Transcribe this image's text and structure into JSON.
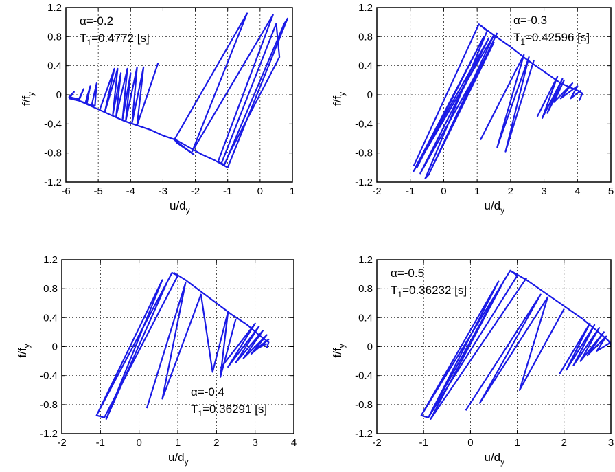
{
  "line_color": "#1a1ae6",
  "chart_data": [
    {
      "type": "line",
      "xlabel": "u/d",
      "xlabel_sub": "y",
      "ylabel": "f/f",
      "ylabel_sub": "y",
      "xlim": [
        -6,
        1
      ],
      "ylim": [
        -1.2,
        1.2
      ],
      "xticks": [
        "-6",
        "-5",
        "-4",
        "-3",
        "-2",
        "-1",
        "0",
        "1"
      ],
      "yticks": [
        "-1.2",
        "-0.8",
        "-0.4",
        "0",
        "0.4",
        "0.8",
        "1.2"
      ],
      "grid": true,
      "annotation": {
        "line1": "α=-0.2",
        "line2_base": "T",
        "line2_sub": "1",
        "line2_rest": "=0.4772 [s]",
        "placement": "top-left"
      },
      "series": [
        {
          "x": [
            -5.9,
            -5.6,
            -5.2,
            -4.9,
            -4.6,
            -4.2,
            -3.8,
            -3.4,
            -3.0,
            -2.6,
            -2.2,
            -1.8,
            -1.4,
            -1.0,
            -1.0
          ],
          "y": [
            -0.05,
            -0.08,
            -0.16,
            -0.22,
            -0.28,
            -0.36,
            -0.42,
            -0.48,
            -0.56,
            -0.62,
            -0.72,
            -0.82,
            -0.9,
            -1.0,
            -1.0
          ]
        },
        {
          "x": [
            -5.9,
            -5.75,
            -5.9,
            -5.6,
            -5.45,
            -5.6,
            -5.35,
            -5.25,
            -5.4,
            -5.1,
            -5.05,
            -5.2
          ],
          "y": [
            -0.05,
            0.04,
            -0.03,
            -0.06,
            0.08,
            -0.08,
            -0.12,
            0.12,
            -0.12,
            -0.15,
            0.16,
            -0.14
          ]
        },
        {
          "x": [
            -4.95,
            -4.5,
            -4.8,
            -4.4,
            -4.55,
            -4.3,
            -4.45,
            -4.1,
            -4.25,
            -4.0,
            -4.15,
            -3.8,
            -3.95,
            -3.6,
            -3.8,
            -3.15
          ],
          "y": [
            -0.2,
            0.36,
            -0.24,
            0.36,
            -0.27,
            0.3,
            -0.3,
            0.36,
            -0.34,
            0.3,
            -0.36,
            0.38,
            -0.38,
            0.38,
            -0.42,
            0.44
          ]
        },
        {
          "x": [
            -1.0,
            0.85,
            0.75,
            -1.1,
            -1.3,
            0.4,
            -2.1,
            -0.4,
            -2.65,
            -2.05,
            -2.6
          ],
          "y": [
            -1.0,
            1.05,
            0.98,
            -0.96,
            -0.92,
            1.1,
            -0.78,
            1.12,
            -0.62,
            -0.82,
            -0.65
          ]
        },
        {
          "x": [
            -1.2,
            0.5,
            0.6,
            -1.0
          ],
          "y": [
            -0.95,
            0.98,
            0.52,
            -0.85
          ]
        }
      ]
    },
    {
      "type": "line",
      "xlabel": "u/d",
      "xlabel_sub": "y",
      "ylabel": "f/f",
      "ylabel_sub": "y",
      "xlim": [
        -2,
        5
      ],
      "ylim": [
        -1.2,
        1.2
      ],
      "xticks": [
        "-2",
        "-1",
        "0",
        "1",
        "2",
        "3",
        "4",
        "5"
      ],
      "yticks": [
        "-1.2",
        "-0.8",
        "-0.4",
        "0",
        "0.4",
        "0.8",
        "1.2"
      ],
      "grid": true,
      "annotation": {
        "line1": "α=-0.3",
        "line2_base": "T",
        "line2_sub": "1",
        "line2_rest": "=0.42596 [s]",
        "placement": "top-right"
      },
      "series": [
        {
          "x": [
            1.05,
            1.5,
            2.0,
            2.5,
            3.0,
            3.5,
            4.0,
            4.15,
            4.05
          ],
          "y": [
            0.97,
            0.82,
            0.66,
            0.48,
            0.32,
            0.16,
            0.06,
            0.02,
            -0.08
          ]
        },
        {
          "x": [
            -0.9,
            1.05,
            1.3,
            -0.55,
            -0.45,
            1.5,
            -0.9,
            1.2,
            -0.8
          ],
          "y": [
            -0.98,
            0.97,
            0.88,
            -1.15,
            -1.1,
            0.82,
            -1.05,
            0.8,
            -1.0
          ]
        },
        {
          "x": [
            -0.85,
            1.35,
            -0.7,
            1.5,
            -0.35,
            1.6
          ],
          "y": [
            -1.0,
            0.78,
            -1.08,
            0.72,
            -1.0,
            0.85
          ]
        },
        {
          "x": [
            1.1,
            2.4,
            1.6,
            2.55,
            1.85,
            2.7
          ],
          "y": [
            -0.62,
            0.55,
            -0.72,
            0.52,
            -0.78,
            0.48
          ]
        },
        {
          "x": [
            2.8,
            3.4,
            2.95,
            3.55,
            3.1,
            3.6,
            3.3,
            3.85,
            3.5,
            4.0,
            3.8,
            4.1
          ],
          "y": [
            -0.3,
            0.25,
            -0.32,
            0.22,
            -0.25,
            0.2,
            -0.1,
            0.16,
            -0.05,
            0.12,
            -0.05,
            0.06
          ]
        }
      ]
    },
    {
      "type": "line",
      "xlabel": "u/d",
      "xlabel_sub": "y",
      "ylabel": "f/f",
      "ylabel_sub": "y",
      "xlim": [
        -2,
        4
      ],
      "ylim": [
        -1.2,
        1.2
      ],
      "xticks": [
        "-2",
        "-1",
        "0",
        "1",
        "2",
        "3",
        "4"
      ],
      "yticks": [
        "-1.2",
        "-0.8",
        "-0.4",
        "0",
        "0.4",
        "0.8",
        "1.2"
      ],
      "grid": true,
      "annotation": {
        "line1": "α=-0.4",
        "line2_base": "T",
        "line2_sub": "1",
        "line2_rest": "=0.36291 [s]",
        "placement": "bottom-right"
      },
      "series": [
        {
          "x": [
            0.9,
            1.2,
            1.6,
            2.0,
            2.4,
            2.8,
            3.1,
            3.35,
            3.3
          ],
          "y": [
            1.02,
            0.92,
            0.76,
            0.6,
            0.44,
            0.3,
            0.16,
            0.06,
            -0.02
          ]
        },
        {
          "x": [
            -1.1,
            0.85,
            1.0,
            -0.9,
            -1.1,
            0.6,
            -0.85,
            0.75
          ],
          "y": [
            -0.95,
            1.02,
            0.98,
            -0.98,
            -0.95,
            0.92,
            -1.0,
            0.92
          ]
        },
        {
          "x": [
            0.2,
            1.2,
            0.6,
            1.6,
            1.9,
            2.3,
            2.1,
            2.5
          ],
          "y": [
            -0.85,
            0.88,
            -0.72,
            0.72,
            -0.35,
            0.48,
            -0.42,
            0.38
          ]
        },
        {
          "x": [
            2.1,
            3.0,
            2.3,
            3.1,
            2.5,
            3.2,
            2.7,
            3.3,
            2.9,
            3.35,
            3.0,
            3.3
          ],
          "y": [
            -0.3,
            0.32,
            -0.28,
            0.28,
            -0.22,
            0.22,
            -0.16,
            0.16,
            -0.1,
            0.1,
            -0.04,
            0.04
          ]
        }
      ]
    },
    {
      "type": "line",
      "xlabel": "u/d",
      "xlabel_sub": "y",
      "ylabel": "f/f",
      "ylabel_sub": "y",
      "xlim": [
        -2,
        3
      ],
      "ylim": [
        -1.2,
        1.2
      ],
      "xticks": [
        "-2",
        "-1",
        "0",
        "1",
        "2",
        "3"
      ],
      "yticks": [
        "-1.2",
        "-0.8",
        "-0.4",
        "0",
        "0.4",
        "0.8",
        "1.2"
      ],
      "grid": true,
      "annotation": {
        "line1": "α=-0.5",
        "line2_base": "T",
        "line2_sub": "1",
        "line2_rest": "=0.36232 [s]",
        "placement": "top-left"
      },
      "series": [
        {
          "x": [
            0.85,
            1.2,
            1.6,
            2.0,
            2.4,
            2.7,
            2.95,
            3.0
          ],
          "y": [
            1.05,
            0.92,
            0.74,
            0.56,
            0.38,
            0.22,
            0.08,
            0.02
          ]
        },
        {
          "x": [
            -1.05,
            0.85,
            1.0,
            -0.9,
            -1.05,
            0.6,
            -0.9,
            0.75,
            -0.85,
            1.2
          ],
          "y": [
            -0.95,
            1.05,
            0.98,
            -0.98,
            -0.95,
            0.9,
            -0.98,
            0.95,
            -1.0,
            0.95
          ]
        },
        {
          "x": [
            -0.1,
            1.5,
            0.2,
            1.65,
            1.05,
            2.0
          ],
          "y": [
            -0.88,
            0.72,
            -0.78,
            0.68,
            -0.6,
            0.52
          ]
        },
        {
          "x": [
            1.9,
            2.55,
            2.05,
            2.65,
            2.2,
            2.75,
            2.35,
            2.85,
            2.5,
            2.9,
            2.7,
            3.0
          ],
          "y": [
            -0.38,
            0.32,
            -0.32,
            0.3,
            -0.26,
            0.26,
            -0.2,
            0.2,
            -0.12,
            0.14,
            -0.06,
            0.06
          ]
        }
      ]
    }
  ]
}
